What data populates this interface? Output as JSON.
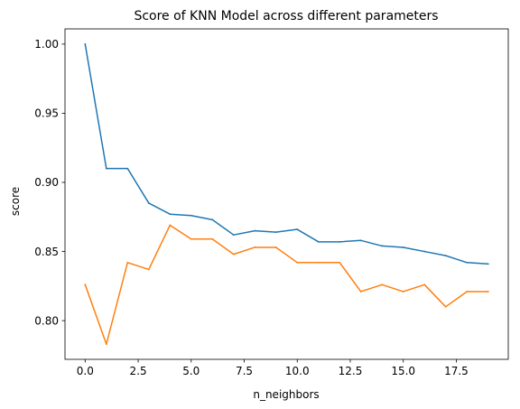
{
  "chart_data": {
    "type": "line",
    "title": "Score of KNN Model across different parameters",
    "xlabel": "n_neighbors",
    "ylabel": "score",
    "xlim": [
      -0.95,
      19.95
    ],
    "ylim": [
      0.772,
      1.011
    ],
    "xticks": [
      0.0,
      2.5,
      5.0,
      7.5,
      10.0,
      12.5,
      15.0,
      17.5
    ],
    "xtick_labels": [
      "0.0",
      "2.5",
      "5.0",
      "7.5",
      "10.0",
      "12.5",
      "15.0",
      "17.5"
    ],
    "yticks": [
      0.8,
      0.85,
      0.9,
      0.95,
      1.0
    ],
    "ytick_labels": [
      "0.80",
      "0.85",
      "0.90",
      "0.95",
      "1.00"
    ],
    "grid": false,
    "x": [
      0,
      1,
      2,
      3,
      4,
      5,
      6,
      7,
      8,
      9,
      10,
      11,
      12,
      13,
      14,
      15,
      16,
      17,
      18,
      19
    ],
    "series": [
      {
        "color": "#1f77b4",
        "values": [
          1.0,
          0.91,
          0.91,
          0.885,
          0.877,
          0.876,
          0.873,
          0.862,
          0.865,
          0.864,
          0.866,
          0.857,
          0.857,
          0.858,
          0.854,
          0.853,
          0.85,
          0.847,
          0.842,
          0.841
        ]
      },
      {
        "color": "#ff7f0e",
        "values": [
          0.826,
          0.783,
          0.842,
          0.837,
          0.869,
          0.859,
          0.859,
          0.848,
          0.853,
          0.853,
          0.842,
          0.842,
          0.842,
          0.821,
          0.826,
          0.821,
          0.826,
          0.81,
          0.821,
          0.821
        ]
      }
    ]
  }
}
